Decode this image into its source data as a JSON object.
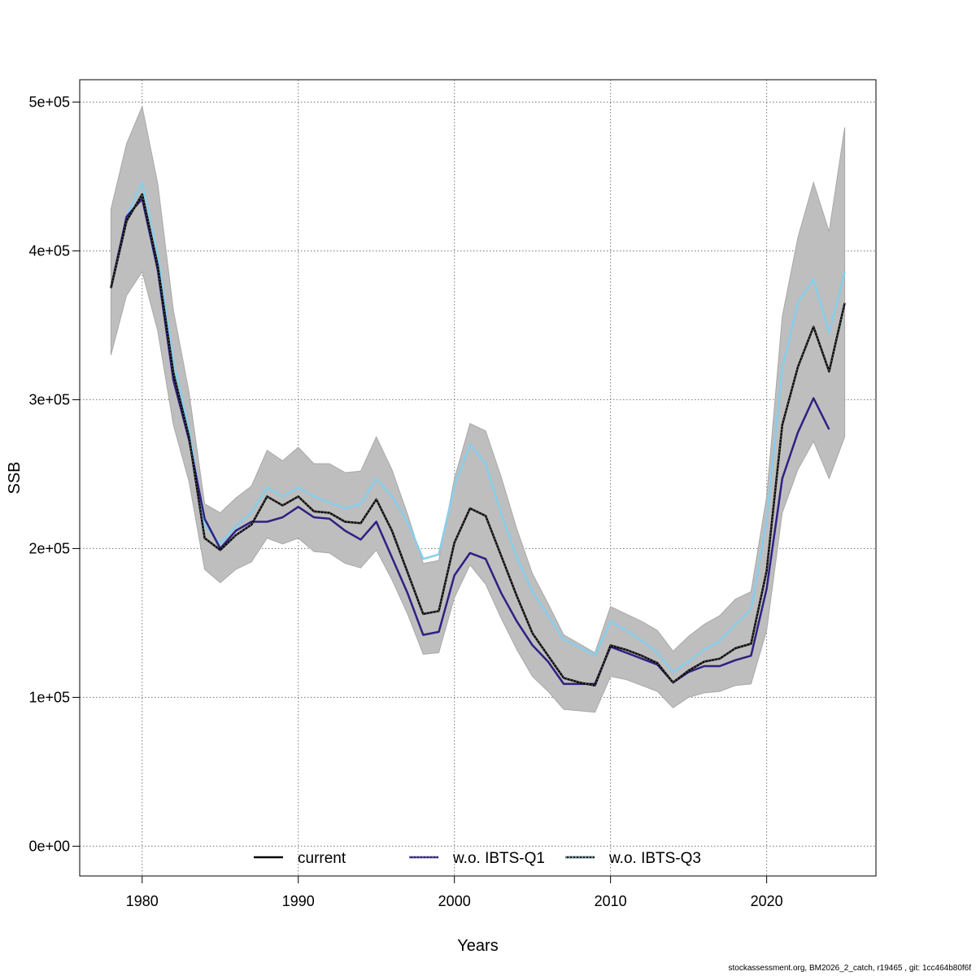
{
  "chart_data": {
    "type": "line",
    "xlabel": "Years",
    "ylabel": "SSB",
    "xlim": [
      1976,
      2027
    ],
    "ylim": [
      -20000,
      515000
    ],
    "x_ticks": [
      1980,
      1990,
      2000,
      2010,
      2020
    ],
    "y_ticks": [
      0,
      100000,
      200000,
      300000,
      400000,
      500000
    ],
    "y_tick_labels": [
      "0e+00",
      "1e+05",
      "2e+05",
      "3e+05",
      "4e+05",
      "5e+05"
    ],
    "grid": true,
    "legend_position": "bottom",
    "x": [
      1978,
      1979,
      1980,
      1981,
      1982,
      1983,
      1984,
      1985,
      1986,
      1987,
      1988,
      1989,
      1990,
      1991,
      1992,
      1993,
      1994,
      1995,
      1996,
      1997,
      1998,
      1999,
      2000,
      2001,
      2002,
      2003,
      2004,
      2005,
      2006,
      2007,
      2008,
      2009,
      2010,
      2011,
      2012,
      2013,
      2014,
      2015,
      2016,
      2017,
      2018,
      2019,
      2020,
      2021,
      2022,
      2023,
      2024,
      2025
    ],
    "band": {
      "lower": [
        330000,
        370000,
        386000,
        346000,
        283000,
        245000,
        186000,
        177000,
        186000,
        191000,
        207000,
        203000,
        207000,
        198000,
        197000,
        190000,
        187000,
        199000,
        179000,
        156000,
        129000,
        130000,
        167000,
        189000,
        176000,
        153000,
        132000,
        114000,
        104000,
        92000,
        91000,
        90000,
        114000,
        112000,
        108000,
        104000,
        93000,
        100000,
        103000,
        104000,
        108000,
        109000,
        145000,
        224000,
        253000,
        272000,
        247000,
        275000
      ],
      "upper": [
        428000,
        472000,
        497000,
        445000,
        360000,
        305000,
        230000,
        224000,
        234000,
        242000,
        266000,
        259000,
        268000,
        257000,
        257000,
        251000,
        252000,
        275000,
        253000,
        223000,
        190000,
        192000,
        247000,
        284000,
        279000,
        248000,
        213000,
        183000,
        163000,
        142000,
        136000,
        130000,
        161000,
        156000,
        151000,
        145000,
        131000,
        141000,
        149000,
        155000,
        166000,
        171000,
        235000,
        356000,
        409000,
        446000,
        413000,
        483000
      ]
    },
    "series": [
      {
        "name": "current",
        "color": "#000000",
        "values": [
          375000,
          420000,
          438000,
          390000,
          318000,
          275000,
          207000,
          199000,
          209000,
          216000,
          235000,
          229000,
          235000,
          225000,
          224000,
          218000,
          217000,
          233000,
          212000,
          184000,
          156000,
          158000,
          204000,
          227000,
          222000,
          195000,
          168000,
          143000,
          128000,
          113000,
          110000,
          108000,
          135000,
          132000,
          128000,
          123000,
          110000,
          118000,
          124000,
          126000,
          133000,
          136000,
          185000,
          283000,
          322000,
          349000,
          319000,
          365000
        ]
      },
      {
        "name": "w.o. IBTS-Q1",
        "color": "#2e2182",
        "values": [
          375000,
          423000,
          435000,
          387000,
          313000,
          273000,
          220000,
          200000,
          212000,
          218000,
          218000,
          221000,
          228000,
          221000,
          220000,
          212000,
          206000,
          218000,
          194000,
          170000,
          142000,
          144000,
          182000,
          197000,
          193000,
          170000,
          151000,
          135000,
          124000,
          109000,
          109000,
          109000,
          134000,
          130000,
          126000,
          122000,
          110000,
          117000,
          121000,
          121000,
          125000,
          128000,
          173000,
          247000,
          278000,
          301000,
          280000,
          null
        ]
      },
      {
        "name": "w.o. IBTS-Q3",
        "color": "#87ceeb",
        "values": [
          375000,
          423000,
          446000,
          397000,
          326000,
          280000,
          216000,
          203000,
          215000,
          224000,
          241000,
          235000,
          241000,
          235000,
          231000,
          227000,
          230000,
          247000,
          235000,
          218000,
          193000,
          196000,
          242000,
          270000,
          257000,
          223000,
          194000,
          171000,
          155000,
          139000,
          134000,
          128000,
          151000,
          145000,
          138000,
          130000,
          117000,
          124000,
          132000,
          138000,
          149000,
          159000,
          219000,
          321000,
          365000,
          381000,
          345000,
          386000
        ]
      }
    ]
  },
  "footnote": "stockassessment.org, BM2026_2_catch, r19465 , git: 1cc464b80f6f"
}
